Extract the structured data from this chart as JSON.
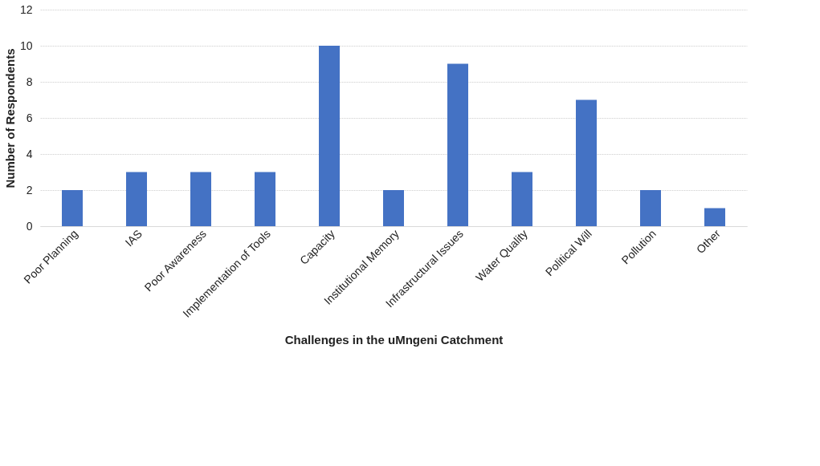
{
  "chart_data": {
    "type": "bar",
    "xlabel": "Challenges in the uMngeni Catchment",
    "ylabel": "Number  of Respondents",
    "categories": [
      "Poor Planning",
      "IAS",
      "Poor Awareness",
      "Implementation of Tools",
      "Capacity",
      "Institutional Memory",
      "Infrastructural Issues",
      "Water Quality",
      "Political Will",
      "Pollution",
      "Other"
    ],
    "values": [
      2,
      3,
      3,
      3,
      10,
      2,
      9,
      3,
      7,
      2,
      1
    ],
    "color": "#4472c4",
    "ylim": [
      0,
      12
    ],
    "yticks": [
      0,
      2,
      4,
      6,
      8,
      10,
      12
    ],
    "grid": "y"
  }
}
